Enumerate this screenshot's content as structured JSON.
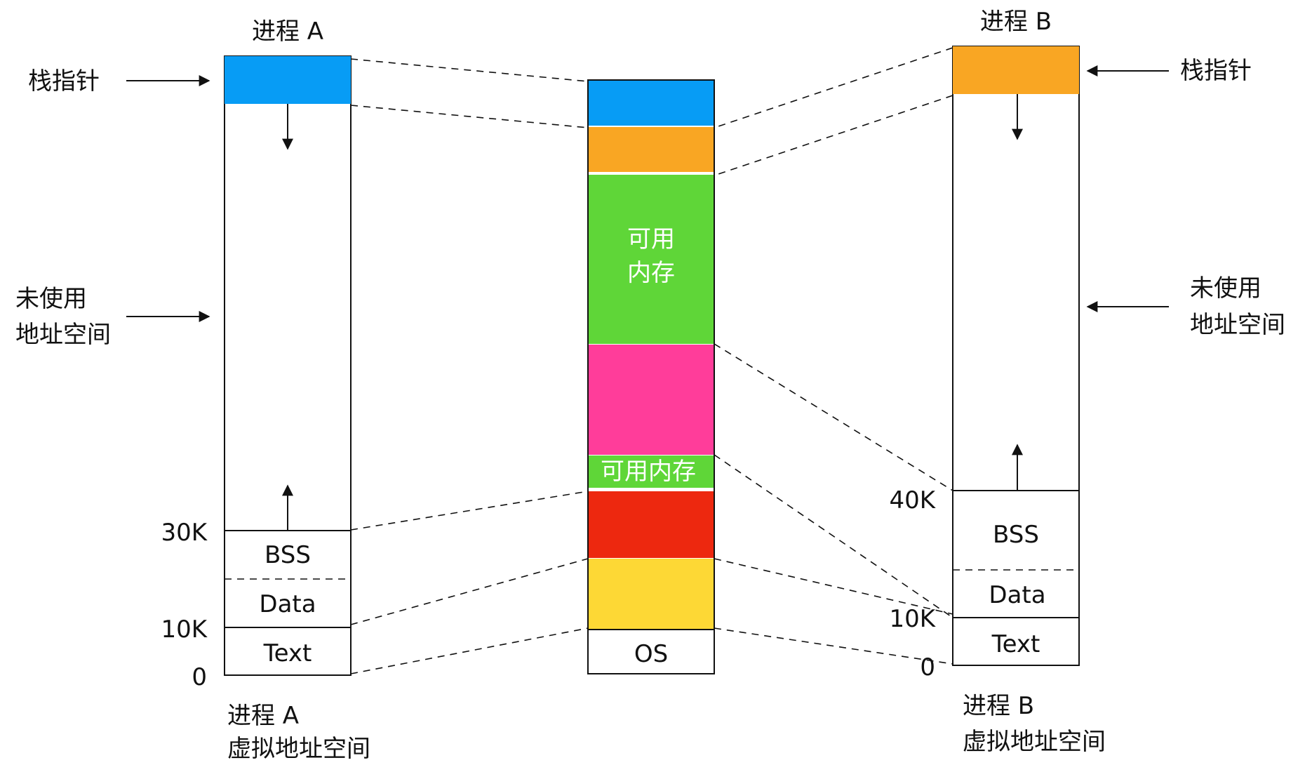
{
  "process_a": {
    "title": "进程 A",
    "caption_line1": "进程 A",
    "caption_line2": "虚拟地址空间",
    "stack_pointer_label": "栈指针",
    "unused_line1": "未使用",
    "unused_line2": "地址空间",
    "segments": {
      "bss": "BSS",
      "data": "Data",
      "text": "Text"
    },
    "ticks": {
      "t30k": "30K",
      "t10k": "10K",
      "t0": "0"
    },
    "stack_color": "#079cf5"
  },
  "process_b": {
    "title": "进程 B",
    "caption_line1": "进程 B",
    "caption_line2": "虚拟地址空间",
    "stack_pointer_label": "栈指针",
    "unused_line1": "未使用",
    "unused_line2": "地址空间",
    "segments": {
      "bss": "BSS",
      "data": "Data",
      "text": "Text"
    },
    "ticks": {
      "t40k": "40K",
      "t10k": "10K",
      "t0": "0"
    },
    "stack_color": "#f9a623"
  },
  "physical_memory": {
    "free_large_line1": "可用",
    "free_large_line2": "内存",
    "free_small": "可用内存",
    "os": "OS",
    "colors": {
      "stack_a": "#079cf5",
      "stack_b": "#f9a623",
      "free": "#5fd638",
      "pink": "#ff3d9a",
      "red": "#ed280f",
      "yellow": "#fdd835"
    }
  },
  "icons": {
    "arrow": "arrow-icon"
  }
}
